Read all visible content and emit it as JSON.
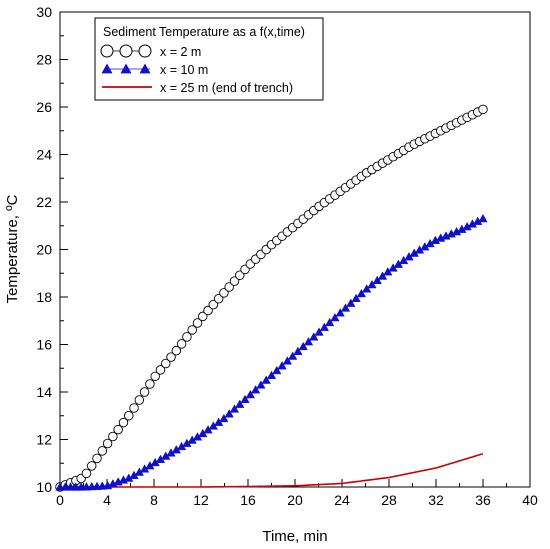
{
  "chart_data": {
    "type": "scatter",
    "title": "",
    "xlabel": "Time, min",
    "ylabel": "Temperature, ºC",
    "xlim": [
      0,
      40
    ],
    "ylim": [
      10,
      30
    ],
    "x_ticks": [
      "0",
      "4",
      "8",
      "12",
      "16",
      "20",
      "24",
      "28",
      "32",
      "36",
      "40"
    ],
    "y_ticks": [
      "10",
      "12",
      "14",
      "16",
      "18",
      "20",
      "22",
      "24",
      "26",
      "28",
      "30"
    ],
    "grid": false,
    "legend": {
      "title": "Sediment Temperature as a f(x,time)",
      "placement": "top-left"
    },
    "series": [
      {
        "name": "x = 2 m",
        "marker": "open-circle",
        "color": "#000000",
        "x": [
          0,
          2,
          4,
          6,
          8,
          10,
          12,
          14,
          16,
          18,
          20,
          22,
          24,
          26,
          28,
          30,
          32,
          34,
          36
        ],
        "y": [
          10.0,
          10.4,
          11.8,
          13.1,
          14.6,
          15.8,
          17.1,
          18.2,
          19.3,
          20.2,
          21.0,
          21.8,
          22.5,
          23.2,
          23.8,
          24.4,
          24.9,
          25.4,
          25.9
        ]
      },
      {
        "name": "x = 10 m",
        "marker": "filled-triangle",
        "color": "#1010cc",
        "x": [
          0,
          2,
          4,
          6,
          8,
          10,
          12,
          14,
          16,
          18,
          20,
          22,
          24,
          26,
          28,
          30,
          32,
          34,
          36
        ],
        "y": [
          10.0,
          10.0,
          10.05,
          10.4,
          11.0,
          11.6,
          12.2,
          12.9,
          13.8,
          14.7,
          15.6,
          16.5,
          17.4,
          18.3,
          19.1,
          19.8,
          20.4,
          20.8,
          21.3
        ]
      },
      {
        "name": "x = 25 m (end of trench)",
        "marker": "line",
        "color": "#cc0000",
        "x": [
          0,
          4,
          8,
          12,
          16,
          20,
          24,
          28,
          32,
          36
        ],
        "y": [
          10.0,
          10.0,
          10.0,
          10.0,
          10.02,
          10.05,
          10.15,
          10.4,
          10.8,
          11.4
        ]
      }
    ]
  }
}
